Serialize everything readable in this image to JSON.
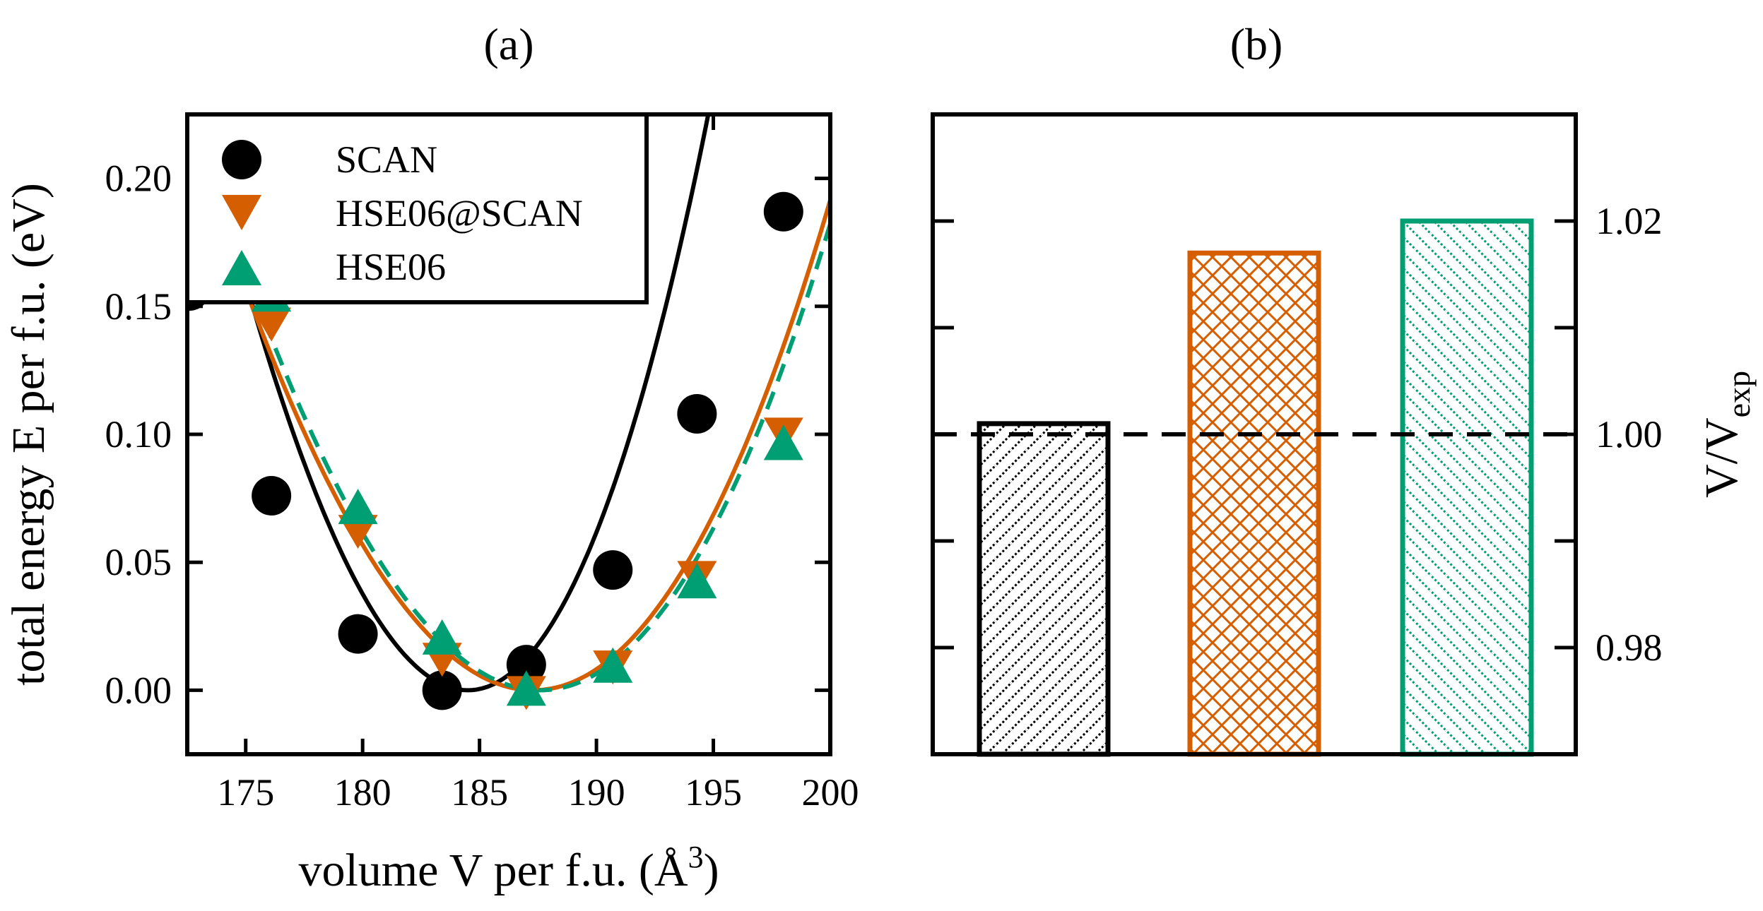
{
  "colors": {
    "scan": "#000000",
    "hse06_at_scan": "#d55e00",
    "hse06": "#009e73"
  },
  "chart_data": [
    {
      "type": "scatter",
      "panel_label": "(a)",
      "xlabel_main": "volume V per f.u. (Å",
      "xlabel_sup": "3",
      "xlabel_close": ")",
      "ylabel": "total energy E per f.u. (eV)",
      "xlim": [
        172.5,
        200
      ],
      "ylim": [
        -0.025,
        0.225
      ],
      "x_ticks": [
        175,
        180,
        185,
        190,
        195,
        200
      ],
      "x_tick_labels": [
        "175",
        "180",
        "185",
        "190",
        "195",
        "200"
      ],
      "y_ticks": [
        0.0,
        0.05,
        0.1,
        0.15,
        0.2
      ],
      "y_tick_labels": [
        "0.00",
        "0.05",
        "0.10",
        "0.15",
        "0.20"
      ],
      "legend_position": "top-left",
      "series": [
        {
          "name": "SCAN",
          "marker": "circle",
          "line": "solid",
          "x": [
            172.6,
            176.1,
            179.8,
            183.4,
            187.0,
            190.7,
            194.3,
            198.0
          ],
          "y": [
            0.156,
            0.076,
            0.022,
            0.0,
            0.01,
            0.047,
            0.108,
            0.187
          ],
          "fit": {
            "v0": 184.5,
            "a": 0.00194,
            "b": 1.83e-05
          }
        },
        {
          "name": "HSE06@SCAN",
          "marker": "triangle-down",
          "line": "solid",
          "x": [
            176.1,
            179.8,
            183.4,
            187.0,
            190.7,
            194.3,
            198.0
          ],
          "y": [
            0.144,
            0.063,
            0.013,
            0.0,
            0.01,
            0.045,
            0.101
          ],
          "fit": {
            "v0": 187.3,
            "a": 0.00111,
            "b": 6.1e-06
          }
        },
        {
          "name": "HSE06",
          "marker": "triangle-up",
          "line": "dashed",
          "x": [
            176.1,
            179.8,
            183.4,
            187.0,
            190.7,
            194.3,
            198.0
          ],
          "y": [
            0.154,
            0.071,
            0.02,
            0.0,
            0.009,
            0.042,
            0.096
          ],
          "fit": {
            "v0": 187.6,
            "a": 0.00111,
            "b": 6.1e-06
          }
        }
      ]
    },
    {
      "type": "bar",
      "panel_label": "(b)",
      "ylabel_main": "V/V",
      "ylabel_sub": "exp",
      "y_axis_side": "right",
      "ylim": [
        0.97,
        1.03
      ],
      "y_ticks": [
        0.98,
        0.99,
        1.0,
        1.01,
        1.02
      ],
      "y_tick_labels": [
        "0.98",
        "",
        "1.00",
        "",
        "1.02"
      ],
      "reference_line": 1.0,
      "categories": [
        "SCAN",
        "HSE06@SCAN",
        "HSE06"
      ],
      "values": [
        1.001,
        1.017,
        1.02
      ],
      "bar_patterns": [
        "diagonal",
        "crosshatch",
        "back-diagonal"
      ]
    }
  ]
}
